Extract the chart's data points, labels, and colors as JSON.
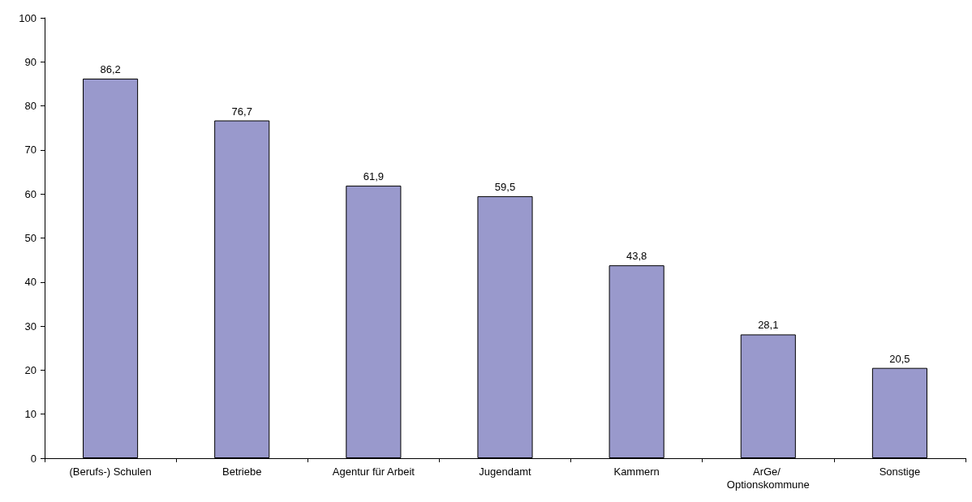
{
  "chart_data": {
    "type": "bar",
    "categories": [
      "(Berufs-) Schulen",
      "Betriebe",
      "Agentur für Arbeit",
      "Jugendamt",
      "Kammern",
      "ArGe/ Optionskommune",
      "Sonstige"
    ],
    "values": [
      86.2,
      76.7,
      61.9,
      59.5,
      43.8,
      28.1,
      20.5
    ],
    "value_labels": [
      "86,2",
      "76,7",
      "61,9",
      "59,5",
      "43,8",
      "28,1",
      "20,5"
    ],
    "color": "#9999cc",
    "ylim": [
      0,
      100
    ],
    "yticks": [
      0,
      10,
      20,
      30,
      40,
      50,
      60,
      70,
      80,
      90,
      100
    ]
  }
}
